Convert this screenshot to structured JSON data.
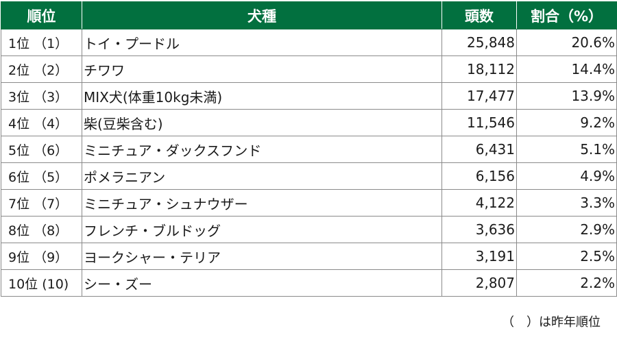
{
  "table": {
    "headers": {
      "rank": "順位",
      "breed": "犬種",
      "count": "頭数",
      "ratio": "割合（%）"
    },
    "rows": [
      {
        "rank": "1位",
        "prev": "（1）",
        "breed": "トイ・プードル",
        "count": "25,848",
        "ratio": "20.6%"
      },
      {
        "rank": "2位",
        "prev": "（2）",
        "breed": "チワワ",
        "count": "18,112",
        "ratio": "14.4%"
      },
      {
        "rank": "3位",
        "prev": "（3）",
        "breed": "MIX犬(体重10kg未満)",
        "count": "17,477",
        "ratio": "13.9%"
      },
      {
        "rank": "4位",
        "prev": "（4）",
        "breed": "柴(豆柴含む)",
        "count": "11,546",
        "ratio": "9.2%"
      },
      {
        "rank": "5位",
        "prev": "（6）",
        "breed": "ミニチュア・ダックスフンド",
        "count": "6,431",
        "ratio": "5.1%"
      },
      {
        "rank": "6位",
        "prev": "（5）",
        "breed": "ポメラニアン",
        "count": "6,156",
        "ratio": "4.9%"
      },
      {
        "rank": "7位",
        "prev": "（7）",
        "breed": "ミニチュア・シュナウザー",
        "count": "4,122",
        "ratio": "3.3%"
      },
      {
        "rank": "8位",
        "prev": "（8）",
        "breed": "フレンチ・ブルドッグ",
        "count": "3,636",
        "ratio": "2.9%"
      },
      {
        "rank": "9位",
        "prev": "（9）",
        "breed": "ヨークシャー・テリア",
        "count": "3,191",
        "ratio": "2.5%"
      },
      {
        "rank": "10位",
        "prev": "(10)",
        "breed": "シー・ズー",
        "count": "2,807",
        "ratio": "2.2%"
      }
    ]
  },
  "footnote": "（　）は昨年順位",
  "colors": {
    "header_bg": "#02703f",
    "header_text": "#ffffff",
    "border": "#8a8a8a"
  }
}
